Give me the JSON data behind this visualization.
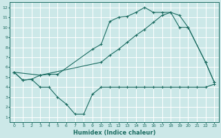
{
  "xlabel": "Humidex (Indice chaleur)",
  "bg_color": "#cce8e8",
  "grid_color": "#aad4d4",
  "line_color": "#1a6b60",
  "xlim": [
    -0.5,
    23.5
  ],
  "ylim": [
    0.5,
    12.5
  ],
  "xticks": [
    0,
    1,
    2,
    3,
    4,
    5,
    6,
    7,
    8,
    9,
    10,
    11,
    12,
    13,
    14,
    15,
    16,
    17,
    18,
    19,
    20,
    21,
    22,
    23
  ],
  "yticks": [
    1,
    2,
    3,
    4,
    5,
    6,
    7,
    8,
    9,
    10,
    11,
    12
  ],
  "line1_x": [
    0,
    1,
    2,
    3,
    4,
    5,
    9,
    10,
    11,
    12,
    13,
    14,
    15,
    16,
    17,
    18,
    19,
    20,
    22,
    23
  ],
  "line1_y": [
    5.5,
    4.7,
    4.8,
    5.2,
    5.3,
    5.3,
    7.8,
    8.3,
    10.6,
    11.0,
    11.1,
    11.5,
    12.0,
    11.5,
    11.5,
    11.5,
    10.0,
    10.0,
    6.5,
    4.5
  ],
  "line2_x": [
    0,
    3,
    10,
    11,
    12,
    13,
    14,
    15,
    16,
    17,
    18,
    19,
    20,
    22,
    23
  ],
  "line2_y": [
    5.5,
    5.2,
    6.5,
    7.2,
    7.8,
    8.5,
    9.2,
    9.8,
    10.5,
    11.2,
    11.5,
    11.2,
    10.0,
    6.5,
    4.5
  ],
  "line3_x": [
    0,
    1,
    2,
    3,
    4,
    5,
    6,
    7,
    8,
    9,
    10,
    11,
    12,
    13,
    14,
    15,
    16,
    17,
    18,
    19,
    20,
    21,
    22,
    23
  ],
  "line3_y": [
    5.5,
    4.7,
    4.8,
    4.0,
    4.0,
    3.0,
    2.3,
    1.3,
    1.3,
    3.3,
    4.0,
    4.0,
    4.0,
    4.0,
    4.0,
    4.0,
    4.0,
    4.0,
    4.0,
    4.0,
    4.0,
    4.0,
    4.0,
    4.3
  ]
}
